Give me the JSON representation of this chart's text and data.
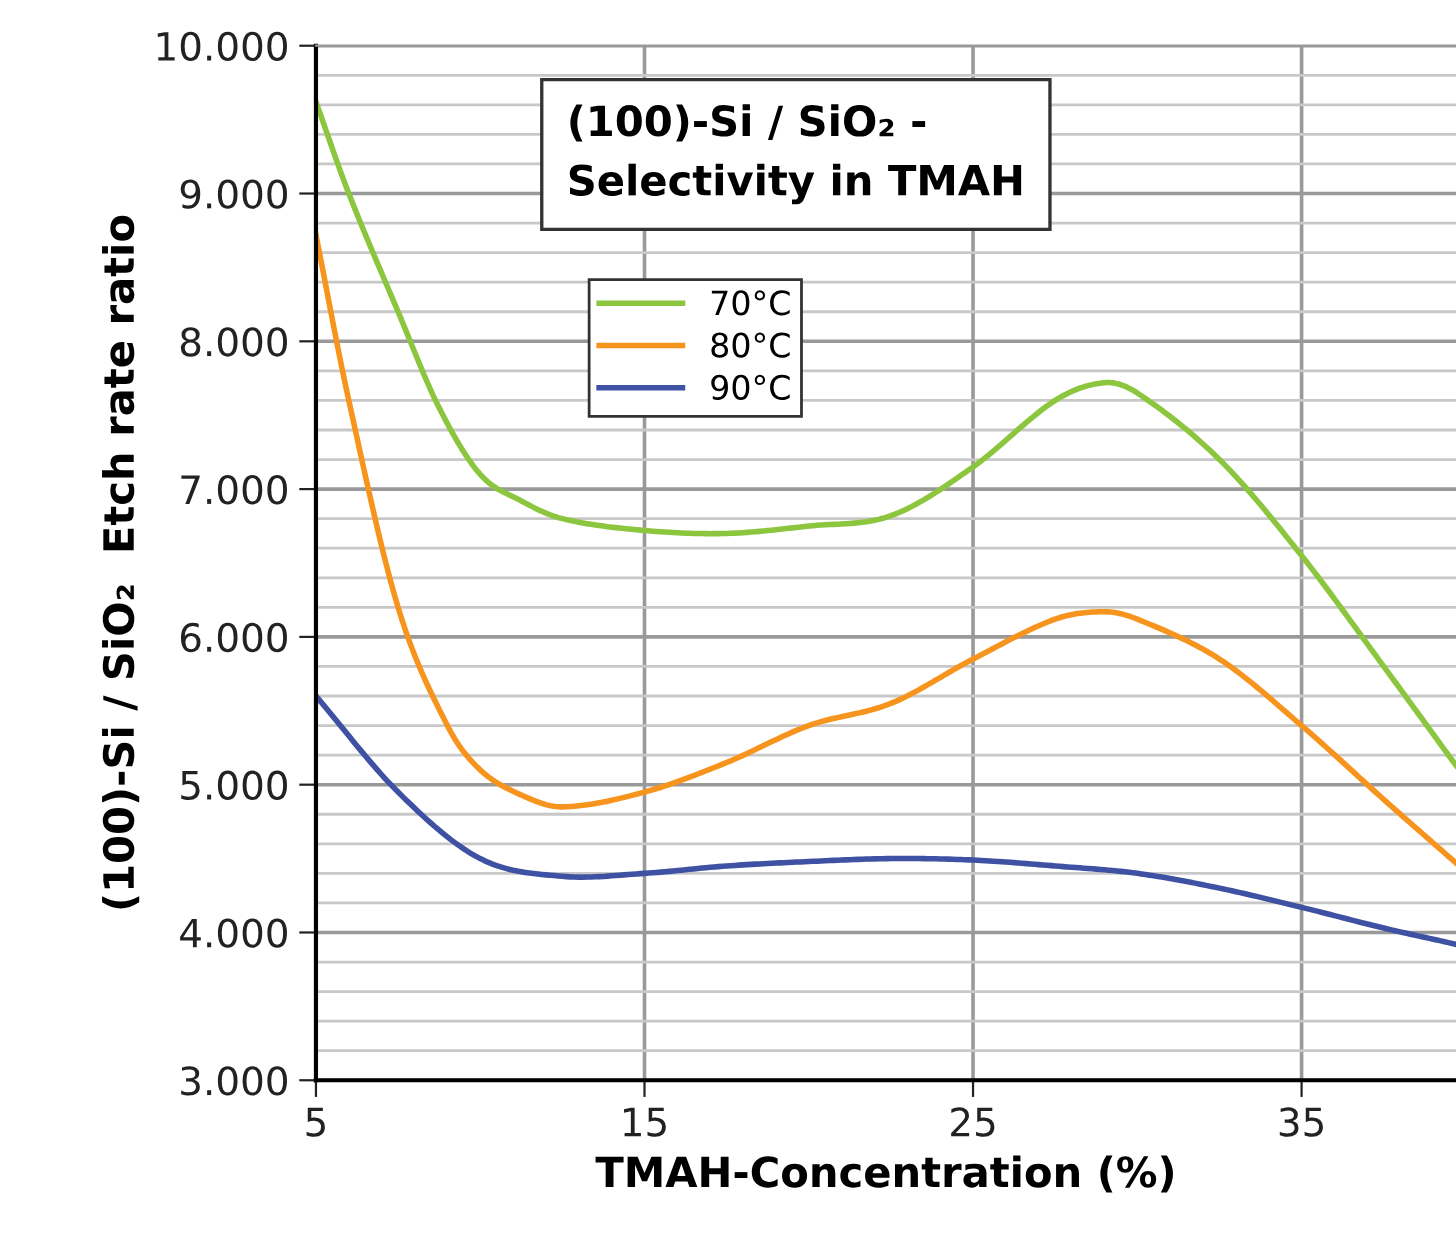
{
  "chart_data": {
    "type": "line",
    "title": "(100)-Si / SiO₂ -\nSelectivity in TMAH",
    "xlabel": "TMAH-Concentration (%)",
    "ylabel": "(100)-Si / SiO₂  Etch rate ratio",
    "xlim": [
      5,
      39.7
    ],
    "xticks": [
      5,
      15,
      25,
      35
    ],
    "ylim": [
      3000,
      10000
    ],
    "yticks": [
      {
        "value": 3000,
        "label": "3.000"
      },
      {
        "value": 4000,
        "label": "4.000"
      },
      {
        "value": 5000,
        "label": "5.000"
      },
      {
        "value": 6000,
        "label": "6.000"
      },
      {
        "value": 7000,
        "label": "7.000"
      },
      {
        "value": 8000,
        "label": "8.000"
      },
      {
        "value": 9000,
        "label": "9.000"
      },
      {
        "value": 10000,
        "label": "10.000"
      }
    ],
    "grid": true,
    "legend": "top",
    "marker": "none",
    "line_style": "solid",
    "series": [
      {
        "name": "70°C",
        "color": "#8cc63f",
        "x": [
          5,
          6,
          7.5,
          8.75,
          10,
          11.25,
          12.5,
          15,
          17.5,
          20,
          22.5,
          25,
          27.5,
          29,
          30,
          32.5,
          35,
          37.5,
          39.7
        ],
        "values": [
          9620,
          9000,
          8200,
          7550,
          7100,
          6920,
          6800,
          6720,
          6700,
          6750,
          6820,
          7150,
          7600,
          7720,
          7650,
          7200,
          6550,
          5800,
          5130
        ]
      },
      {
        "name": "80°C",
        "color": "#f7941d",
        "x": [
          5,
          6,
          7.5,
          9,
          10,
          11.25,
          12.5,
          15,
          17.5,
          20,
          22.5,
          25,
          27.5,
          29,
          30,
          32.5,
          35,
          37.5,
          39.7
        ],
        "values": [
          8720,
          7600,
          6200,
          5400,
          5100,
          4930,
          4850,
          4950,
          5150,
          5400,
          5550,
          5850,
          6120,
          6170,
          6120,
          5850,
          5400,
          4900,
          4470
        ]
      },
      {
        "name": "90°C",
        "color": "#3f51a3",
        "x": [
          5,
          7.5,
          10,
          12.5,
          15,
          17.5,
          20,
          22.5,
          25,
          27.5,
          30,
          32.5,
          35,
          37.5,
          39.7
        ],
        "values": [
          5600,
          4950,
          4500,
          4380,
          4400,
          4450,
          4480,
          4500,
          4490,
          4450,
          4400,
          4300,
          4170,
          4030,
          3920
        ]
      }
    ]
  }
}
